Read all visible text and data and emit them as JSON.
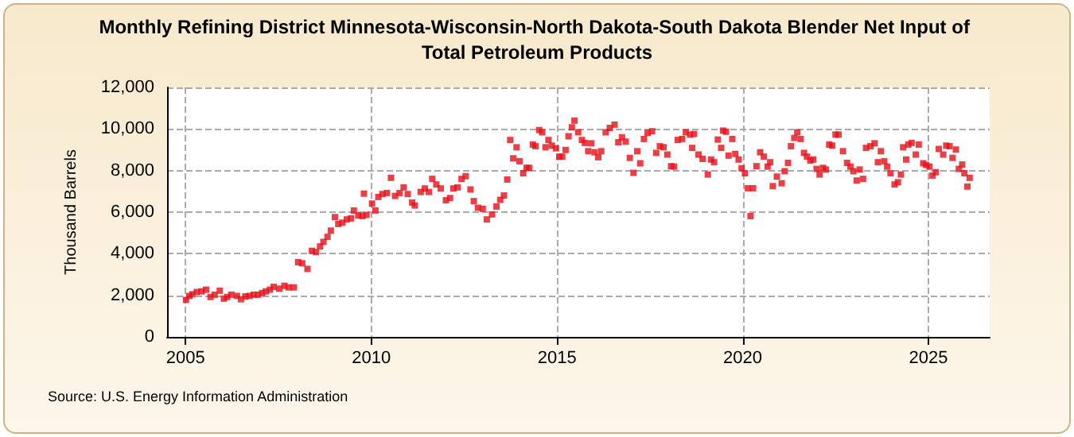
{
  "chart_data": {
    "type": "scatter",
    "title": "Monthly Refining District Minnesota-Wisconsin-North Dakota-South Dakota Blender Net Input of Total Petroleum Products",
    "ylabel": "Thousand Barrels",
    "annotations": [
      "Source: U.S. Energy Information Administration"
    ],
    "color": "#e3101a",
    "marker": "square",
    "grid": true,
    "xlim": [
      2004.5,
      2026.65
    ],
    "xticks": [
      2005,
      2010,
      2015,
      2020,
      2025
    ],
    "ylim": [
      0,
      12000
    ],
    "yticks": [
      0,
      {
        "value": 2000,
        "label": "2,000"
      },
      {
        "value": 4000,
        "label": "4,000"
      },
      {
        "value": 6000,
        "label": "6,000"
      },
      {
        "value": 8000,
        "label": "8,000"
      },
      {
        "value": 10000,
        "label": "10,000"
      },
      {
        "value": 12000,
        "label": "12,000"
      }
    ],
    "x": [
      2005.01,
      2005.1,
      2005.18,
      2005.3,
      2005.43,
      2005.55,
      2005.67,
      2005.78,
      2005.92,
      2006.03,
      2006.12,
      2006.23,
      2006.38,
      2006.49,
      2006.61,
      2006.72,
      2006.83,
      2006.95,
      2007.06,
      2007.16,
      2007.27,
      2007.37,
      2007.52,
      2007.66,
      2007.77,
      2007.91,
      2008.03,
      2008.14,
      2008.28,
      2008.4,
      2008.51,
      2008.62,
      2008.71,
      2008.82,
      2008.91,
      2009.02,
      2009.11,
      2009.22,
      2009.34,
      2009.45,
      2009.53,
      2009.65,
      2009.76,
      2009.8,
      2009.87,
      2010.02,
      2010.11,
      2010.19,
      2010.3,
      2010.42,
      2010.53,
      2010.64,
      2010.76,
      2010.87,
      2010.98,
      2011.1,
      2011.17,
      2011.33,
      2011.44,
      2011.55,
      2011.64,
      2011.75,
      2011.87,
      2012.01,
      2012.12,
      2012.21,
      2012.32,
      2012.43,
      2012.54,
      2012.67,
      2012.76,
      2012.87,
      2013.0,
      2013.11,
      2013.25,
      2013.37,
      2013.47,
      2013.57,
      2013.66,
      2013.74,
      2013.82,
      2013.91,
      2013.99,
      2014.09,
      2014.18,
      2014.25,
      2014.35,
      2014.42,
      2014.52,
      2014.6,
      2014.69,
      2014.77,
      2014.86,
      2014.97,
      2015.06,
      2015.14,
      2015.23,
      2015.31,
      2015.4,
      2015.47,
      2015.57,
      2015.67,
      2015.75,
      2015.84,
      2015.92,
      2016.01,
      2016.11,
      2016.19,
      2016.31,
      2016.42,
      2016.55,
      2016.65,
      2016.75,
      2016.85,
      2016.96,
      2017.06,
      2017.16,
      2017.24,
      2017.34,
      2017.44,
      2017.56,
      2017.67,
      2017.77,
      2017.87,
      2017.97,
      2018.07,
      2018.15,
      2018.25,
      2018.37,
      2018.47,
      2018.58,
      2018.64,
      2018.69,
      2018.81,
      2018.92,
      2019.06,
      2019.15,
      2019.23,
      2019.33,
      2019.42,
      2019.47,
      2019.55,
      2019.62,
      2019.72,
      2019.8,
      2019.89,
      2019.97,
      2020.06,
      2020.14,
      2020.21,
      2020.28,
      2020.37,
      2020.47,
      2020.57,
      2020.67,
      2020.74,
      2020.81,
      2020.92,
      2021.05,
      2021.13,
      2021.22,
      2021.3,
      2021.39,
      2021.47,
      2021.56,
      2021.65,
      2021.73,
      2021.82,
      2021.9,
      2021.99,
      2022.07,
      2022.16,
      2022.24,
      2022.33,
      2022.41,
      2022.5,
      2022.58,
      2022.7,
      2022.81,
      2022.9,
      2022.98,
      2023.07,
      2023.15,
      2023.24,
      2023.32,
      2023.44,
      2023.55,
      2023.64,
      2023.72,
      2023.81,
      2023.89,
      2023.98,
      2024.09,
      2024.18,
      2024.26,
      2024.32,
      2024.4,
      2024.46,
      2024.55,
      2024.66,
      2024.74,
      2024.86,
      2024.94,
      2025.03,
      2025.11,
      2025.2,
      2025.28,
      2025.4,
      2025.48,
      2025.57,
      2025.65,
      2025.74,
      2025.82,
      2025.91,
      2025.97,
      2026.05,
      2026.11
    ],
    "values": [
      1780,
      1970,
      2050,
      2160,
      2190,
      2270,
      1920,
      2030,
      2220,
      1840,
      1920,
      2030,
      1970,
      1810,
      1950,
      1970,
      2030,
      2030,
      2110,
      2190,
      2270,
      2410,
      2320,
      2460,
      2380,
      2380,
      3590,
      3540,
      3270,
      4140,
      4080,
      4350,
      4570,
      4810,
      5110,
      5760,
      5430,
      5490,
      5650,
      5700,
      6080,
      5840,
      5810,
      6890,
      5870,
      6410,
      6080,
      6730,
      6870,
      6920,
      7650,
      6780,
      6920,
      7190,
      6870,
      6460,
      6320,
      6970,
      7140,
      6970,
      7600,
      7330,
      7140,
      6570,
      6680,
      7140,
      7190,
      7600,
      7730,
      7090,
      6530,
      6210,
      6160,
      5650,
      5890,
      6270,
      6590,
      6800,
      7570,
      9470,
      8590,
      9120,
      8450,
      7870,
      8130,
      8130,
      9250,
      9170,
      9950,
      9840,
      9120,
      9470,
      9200,
      9070,
      8670,
      8670,
      8990,
      9650,
      10080,
      10400,
      9840,
      9470,
      9330,
      8930,
      9310,
      8880,
      8640,
      8930,
      9840,
      10050,
      10210,
      9360,
      9600,
      9390,
      8610,
      7890,
      8930,
      8350,
      9520,
      9810,
      9890,
      8850,
      9170,
      9120,
      8770,
      8210,
      8190,
      9470,
      9520,
      9840,
      9730,
      9090,
      9760,
      8770,
      8560,
      7810,
      8530,
      8400,
      9490,
      9090,
      9920,
      9870,
      8720,
      9520,
      8800,
      8530,
      8110,
      7870,
      7150,
      5810,
      7150,
      8210,
      8880,
      8670,
      8190,
      8400,
      7250,
      7710,
      7390,
      7970,
      8370,
      9170,
      9570,
      9840,
      9520,
      8850,
      8670,
      8480,
      8530,
      8080,
      7810,
      8130,
      8050,
      9250,
      9200,
      9730,
      9730,
      8930,
      8370,
      8190,
      7970,
      7520,
      8050,
      7600,
      9090,
      9170,
      9310,
      8400,
      8930,
      8450,
      8190,
      7870,
      7330,
      7440,
      7810,
      9120,
      8530,
      9250,
      9330,
      8770,
      9250,
      8350,
      8270,
      8190,
      7760,
      7920,
      9040,
      8770,
      9200,
      9170,
      8610,
      9010,
      8080,
      8290,
      7870,
      7230,
      7650
    ]
  }
}
